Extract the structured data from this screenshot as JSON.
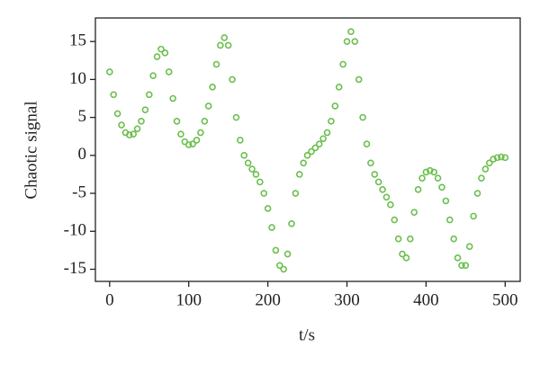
{
  "chart_data": {
    "type": "scatter",
    "xlabel": "t/s",
    "ylabel": "Chaotic signal",
    "xlim": [
      -18,
      519
    ],
    "ylim": [
      -16.6,
      18.1
    ],
    "xticks": [
      0,
      100,
      200,
      300,
      400,
      500
    ],
    "yticks": [
      -15,
      -10,
      -5,
      0,
      5,
      10,
      15
    ],
    "yticklabels_note_free": null,
    "color": "#6cbf4f",
    "x": [
      0,
      5,
      10,
      15,
      20,
      25,
      30,
      35,
      40,
      45,
      50,
      55,
      60,
      65,
      70,
      75,
      80,
      85,
      90,
      95,
      100,
      105,
      110,
      115,
      120,
      125,
      130,
      135,
      140,
      145,
      150,
      155,
      160,
      165,
      170,
      175,
      180,
      185,
      190,
      195,
      200,
      205,
      210,
      215,
      220,
      225,
      230,
      235,
      240,
      245,
      250,
      255,
      260,
      265,
      270,
      275,
      280,
      285,
      290,
      295,
      300,
      305,
      310,
      315,
      320,
      325,
      330,
      335,
      340,
      345,
      350,
      355,
      360,
      365,
      370,
      375,
      380,
      385,
      390,
      395,
      400,
      405,
      410,
      415,
      420,
      425,
      430,
      435,
      440,
      445,
      450,
      455,
      460,
      465,
      470,
      475,
      480,
      485,
      490,
      495,
      500
    ],
    "values": [
      11,
      8,
      5.5,
      4,
      3,
      2.7,
      2.8,
      3.5,
      4.5,
      6,
      8,
      10.5,
      13,
      14,
      13.5,
      11,
      7.5,
      4.5,
      2.8,
      1.8,
      1.4,
      1.5,
      2,
      3,
      4.5,
      6.5,
      9,
      12,
      14.5,
      15.5,
      14.5,
      10,
      5,
      2,
      0,
      -1,
      -1.8,
      -2.5,
      -3.5,
      -5,
      -7,
      -9.5,
      -12.5,
      -14.5,
      -15,
      -13,
      -9,
      -5,
      -2.5,
      -1,
      0,
      0.5,
      1,
      1.5,
      2.2,
      3,
      4.5,
      6.5,
      9,
      12,
      15,
      16.3,
      15,
      10,
      5,
      1.5,
      -1,
      -2.5,
      -3.5,
      -4.5,
      -5.5,
      -6.5,
      -8.5,
      -11,
      -13,
      -13.5,
      -11,
      -7.5,
      -4.5,
      -3,
      -2.2,
      -2,
      -2.2,
      -3,
      -4.2,
      -6,
      -8.5,
      -11,
      -13.5,
      -14.5,
      -14.5,
      -12,
      -8,
      -5,
      -3,
      -1.8,
      -1,
      -0.5,
      -0.3,
      -0.2,
      -0.3
    ]
  }
}
